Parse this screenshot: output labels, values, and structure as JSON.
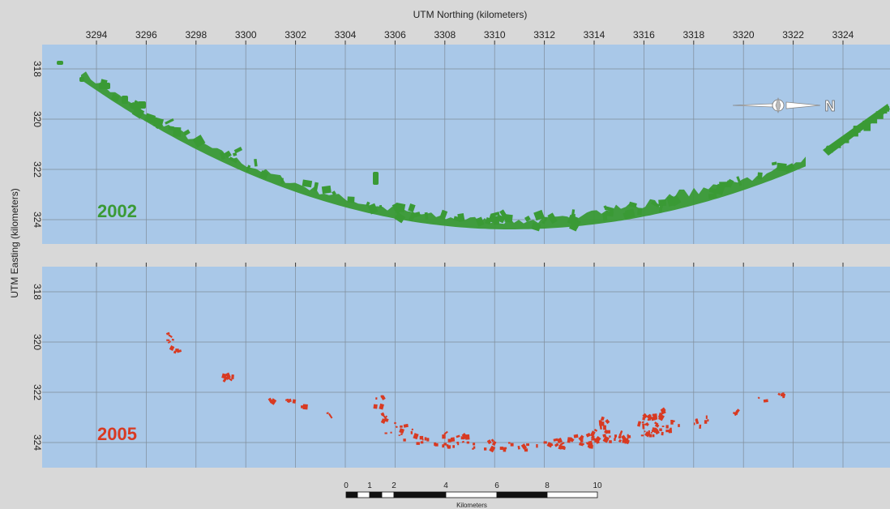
{
  "figure": {
    "x_axis_title": "UTM Northing (kilometers)",
    "y_axis_title": "UTM Easting (kilometers)",
    "x_ticks": [
      "3294",
      "3296",
      "3298",
      "3300",
      "3302",
      "3304",
      "3306",
      "3308",
      "3310",
      "3312",
      "3314",
      "3316",
      "3318",
      "3320",
      "3322",
      "3324"
    ],
    "y_ticks": [
      "318",
      "320",
      "322",
      "324"
    ],
    "north_arrow_label": "N",
    "panels": [
      {
        "year": "2002",
        "color": "#3a9a35"
      },
      {
        "year": "2005",
        "color": "#d83a22"
      }
    ],
    "scale_bar": {
      "labels": [
        "0",
        "1",
        "2",
        "4",
        "6",
        "8",
        "10"
      ],
      "unit": "Kilometers"
    },
    "colors": {
      "water": "#a9c8e8",
      "frame": "#d8d8d8",
      "grid": "#7f8c99"
    }
  }
}
